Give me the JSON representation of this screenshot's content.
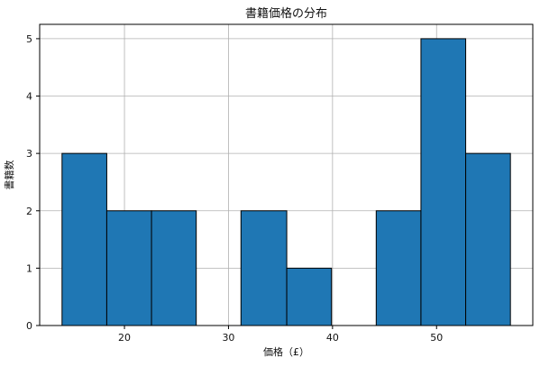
{
  "chart_data": {
    "type": "bar",
    "title": "書籍価格の分布",
    "xlabel": "価格（£）",
    "ylabel": "書籍数",
    "bins": [
      {
        "start": 14.0,
        "end": 18.3,
        "count": 3
      },
      {
        "start": 18.3,
        "end": 22.6,
        "count": 2
      },
      {
        "start": 22.6,
        "end": 26.9,
        "count": 2
      },
      {
        "start": 26.9,
        "end": 31.2,
        "count": 0
      },
      {
        "start": 31.2,
        "end": 35.6,
        "count": 2
      },
      {
        "start": 35.6,
        "end": 39.9,
        "count": 1
      },
      {
        "start": 39.9,
        "end": 44.2,
        "count": 0
      },
      {
        "start": 44.2,
        "end": 48.5,
        "count": 2
      },
      {
        "start": 48.5,
        "end": 52.8,
        "count": 5
      },
      {
        "start": 52.8,
        "end": 57.1,
        "count": 3
      }
    ],
    "xlim": [
      11.85,
      59.25
    ],
    "ylim": [
      0,
      5.25
    ],
    "xticks": [
      20,
      30,
      40,
      50
    ],
    "yticks": [
      0,
      1,
      2,
      3,
      4,
      5
    ],
    "grid": true,
    "bar_color": "#1f77b4",
    "edge_color": "#000000"
  }
}
